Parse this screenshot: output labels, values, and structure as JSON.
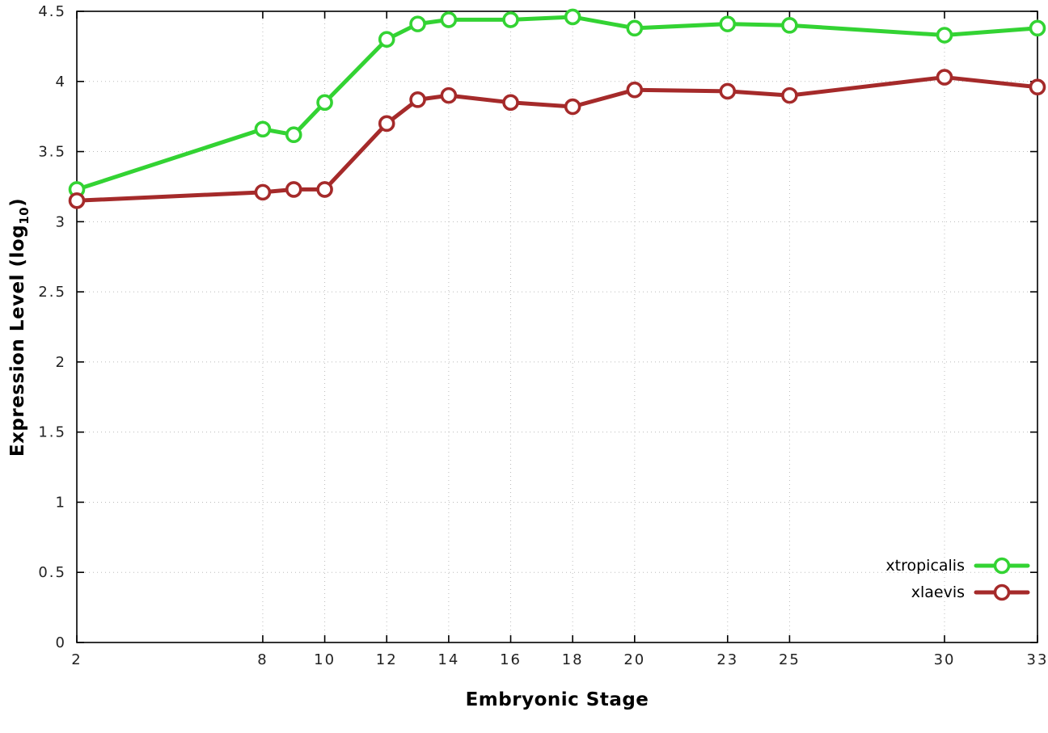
{
  "chart_data": {
    "type": "line",
    "title": "",
    "xlabel": "Embryonic Stage",
    "ylabel": "Expression Level (log10)",
    "ylabel_parts": {
      "main": "Expression Level (log",
      "sub": "10",
      "close": ")"
    },
    "xlim": [
      2,
      33
    ],
    "ylim": [
      0,
      4.5
    ],
    "xticks": [
      2,
      8,
      10,
      12,
      14,
      16,
      18,
      20,
      23,
      25,
      30,
      33
    ],
    "yticks": [
      0,
      0.5,
      1,
      1.5,
      2,
      2.5,
      3,
      3.5,
      4,
      4.5
    ],
    "grid": true,
    "legend_position": "bottom-right",
    "x": [
      2,
      8,
      9,
      10,
      12,
      13,
      14,
      16,
      18,
      20,
      23,
      25,
      30,
      33
    ],
    "series": [
      {
        "name": "xtropicalis",
        "color": "#33d333",
        "values": [
          3.23,
          3.66,
          3.62,
          3.85,
          4.3,
          4.41,
          4.44,
          4.44,
          4.46,
          4.38,
          4.41,
          4.4,
          4.33,
          4.38
        ]
      },
      {
        "name": "xlaevis",
        "color": "#a52a2a",
        "values": [
          3.15,
          3.21,
          3.23,
          3.23,
          3.7,
          3.87,
          3.9,
          3.85,
          3.82,
          3.94,
          3.93,
          3.9,
          4.03,
          3.96
        ]
      }
    ],
    "colors": {
      "grid": "#bbbbbb",
      "axis": "#000000",
      "tick_text": "#222222"
    }
  }
}
